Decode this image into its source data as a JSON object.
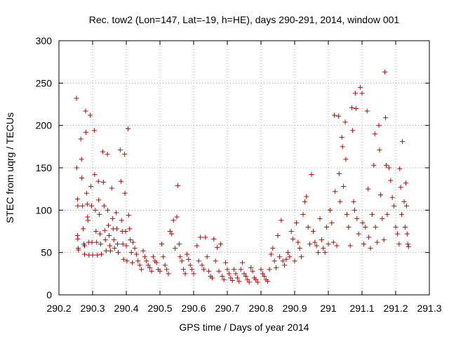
{
  "chart_data": {
    "type": "scatter",
    "title": "Rec. tow2 (Lon=147, Lat=-19, h=HE), days 290-291, 2014, window 001",
    "xlabel": "GPS time / Days of year 2014",
    "ylabel": "STEC from uqrg / TECUs",
    "xlim": [
      290.2,
      291.3
    ],
    "ylim": [
      0,
      300
    ],
    "xticks": [
      290.2,
      290.3,
      290.4,
      290.5,
      290.6,
      290.7,
      290.8,
      290.9,
      291,
      291.1,
      291.2,
      291.3
    ],
    "xtick_labels": [
      "290.2",
      "290.3",
      "290.4",
      "290.5",
      "290.6",
      "290.7",
      "290.8",
      "290.9",
      "291",
      "291.1",
      "291.2",
      "291.3"
    ],
    "yticks": [
      0,
      50,
      100,
      150,
      200,
      250,
      300
    ],
    "ytick_labels": [
      "0",
      "50",
      "100",
      "150",
      "200",
      "250",
      "300"
    ],
    "grid": true,
    "marker": "+",
    "color": "#cc0000",
    "points": [
      [
        290.252,
        232
      ],
      [
        290.253,
        150
      ],
      [
        290.255,
        113
      ],
      [
        290.256,
        105
      ],
      [
        290.255,
        70
      ],
      [
        290.256,
        66
      ],
      [
        290.257,
        55
      ],
      [
        290.258,
        53
      ],
      [
        290.265,
        184
      ],
      [
        290.267,
        160
      ],
      [
        290.268,
        138
      ],
      [
        290.27,
        105
      ],
      [
        290.272,
        78
      ],
      [
        290.274,
        60
      ],
      [
        290.276,
        58
      ],
      [
        290.276,
        48
      ],
      [
        290.279,
        217
      ],
      [
        290.28,
        192
      ],
      [
        290.282,
        120
      ],
      [
        290.284,
        107
      ],
      [
        290.285,
        92
      ],
      [
        290.286,
        88
      ],
      [
        290.288,
        62
      ],
      [
        290.289,
        47
      ],
      [
        290.293,
        212
      ],
      [
        290.295,
        128
      ],
      [
        290.297,
        105
      ],
      [
        290.298,
        62
      ],
      [
        290.3,
        47
      ],
      [
        290.305,
        194
      ],
      [
        290.306,
        142
      ],
      [
        290.308,
        100
      ],
      [
        290.31,
        75
      ],
      [
        290.312,
        62
      ],
      [
        290.314,
        47
      ],
      [
        290.317,
        134
      ],
      [
        290.318,
        112
      ],
      [
        290.32,
        95
      ],
      [
        290.322,
        72
      ],
      [
        290.324,
        60
      ],
      [
        290.326,
        48
      ],
      [
        290.33,
        169
      ],
      [
        290.332,
        133
      ],
      [
        290.334,
        105
      ],
      [
        290.336,
        76
      ],
      [
        290.338,
        65
      ],
      [
        290.34,
        52
      ],
      [
        290.344,
        166
      ],
      [
        290.345,
        100
      ],
      [
        290.347,
        82
      ],
      [
        290.349,
        70
      ],
      [
        290.351,
        58
      ],
      [
        290.353,
        52
      ],
      [
        290.357,
        126
      ],
      [
        290.359,
        90
      ],
      [
        290.361,
        78
      ],
      [
        290.363,
        65
      ],
      [
        290.365,
        55
      ],
      [
        290.37,
        97
      ],
      [
        290.372,
        78
      ],
      [
        290.374,
        60
      ],
      [
        290.376,
        50
      ],
      [
        290.382,
        171
      ],
      [
        290.384,
        134
      ],
      [
        290.386,
        88
      ],
      [
        290.388,
        75
      ],
      [
        290.39,
        60
      ],
      [
        290.392,
        42
      ],
      [
        290.395,
        166
      ],
      [
        290.396,
        120
      ],
      [
        290.398,
        75
      ],
      [
        290.4,
        58
      ],
      [
        290.402,
        40
      ],
      [
        290.405,
        196
      ],
      [
        290.407,
        94
      ],
      [
        290.41,
        78
      ],
      [
        290.412,
        65
      ],
      [
        290.415,
        50
      ],
      [
        290.418,
        38
      ],
      [
        290.42,
        62
      ],
      [
        290.425,
        55
      ],
      [
        290.43,
        48
      ],
      [
        290.435,
        40
      ],
      [
        290.44,
        35
      ],
      [
        290.445,
        30
      ],
      [
        290.45,
        52
      ],
      [
        290.455,
        45
      ],
      [
        290.46,
        40
      ],
      [
        290.465,
        35
      ],
      [
        290.47,
        32
      ],
      [
        290.475,
        28
      ],
      [
        290.48,
        45
      ],
      [
        290.485,
        40
      ],
      [
        290.49,
        38
      ],
      [
        290.495,
        30
      ],
      [
        290.5,
        28
      ],
      [
        290.505,
        60
      ],
      [
        290.51,
        45
      ],
      [
        290.515,
        35
      ],
      [
        290.52,
        30
      ],
      [
        290.525,
        25
      ],
      [
        290.53,
        75
      ],
      [
        290.535,
        72
      ],
      [
        290.54,
        88
      ],
      [
        290.545,
        55
      ],
      [
        290.55,
        92
      ],
      [
        290.553,
        129
      ],
      [
        290.557,
        60
      ],
      [
        290.56,
        45
      ],
      [
        290.565,
        40
      ],
      [
        290.57,
        30
      ],
      [
        290.575,
        25
      ],
      [
        290.58,
        48
      ],
      [
        290.585,
        42
      ],
      [
        290.59,
        35
      ],
      [
        290.595,
        30
      ],
      [
        290.6,
        25
      ],
      [
        290.61,
        58
      ],
      [
        290.615,
        40
      ],
      [
        290.62,
        68
      ],
      [
        290.625,
        35
      ],
      [
        290.63,
        30
      ],
      [
        290.635,
        68
      ],
      [
        290.64,
        45
      ],
      [
        290.645,
        28
      ],
      [
        290.65,
        22
      ],
      [
        290.655,
        20
      ],
      [
        290.66,
        66
      ],
      [
        290.665,
        40
      ],
      [
        290.67,
        56
      ],
      [
        290.675,
        28
      ],
      [
        290.68,
        60
      ],
      [
        290.685,
        22
      ],
      [
        290.69,
        18
      ],
      [
        290.695,
        38
      ],
      [
        290.7,
        30
      ],
      [
        290.705,
        25
      ],
      [
        290.71,
        20
      ],
      [
        290.715,
        17
      ],
      [
        290.72,
        30
      ],
      [
        290.725,
        25
      ],
      [
        290.73,
        20
      ],
      [
        290.735,
        16
      ],
      [
        290.74,
        30
      ],
      [
        290.745,
        38
      ],
      [
        290.75,
        25
      ],
      [
        290.755,
        22
      ],
      [
        290.76,
        18
      ],
      [
        290.765,
        15
      ],
      [
        290.77,
        32
      ],
      [
        290.775,
        28
      ],
      [
        290.78,
        20
      ],
      [
        290.785,
        18
      ],
      [
        290.79,
        15
      ],
      [
        290.8,
        30
      ],
      [
        290.805,
        25
      ],
      [
        290.81,
        22
      ],
      [
        290.815,
        18
      ],
      [
        290.82,
        16
      ],
      [
        290.825,
        30
      ],
      [
        290.83,
        48
      ],
      [
        290.835,
        55
      ],
      [
        290.84,
        40
      ],
      [
        290.845,
        32
      ],
      [
        290.85,
        70
      ],
      [
        290.855,
        45
      ],
      [
        290.86,
        88
      ],
      [
        290.865,
        40
      ],
      [
        290.87,
        35
      ],
      [
        290.875,
        42
      ],
      [
        290.88,
        50
      ],
      [
        290.885,
        45
      ],
      [
        290.89,
        75
      ],
      [
        290.895,
        66
      ],
      [
        290.9,
        40
      ],
      [
        290.905,
        85
      ],
      [
        290.91,
        62
      ],
      [
        290.915,
        55
      ],
      [
        290.92,
        45
      ],
      [
        290.925,
        95
      ],
      [
        290.93,
        110
      ],
      [
        290.935,
        116
      ],
      [
        290.94,
        80
      ],
      [
        290.945,
        60
      ],
      [
        290.95,
        142
      ],
      [
        290.955,
        75
      ],
      [
        290.96,
        62
      ],
      [
        290.965,
        58
      ],
      [
        290.97,
        50
      ],
      [
        290.975,
        90
      ],
      [
        290.98,
        65
      ],
      [
        290.985,
        55
      ],
      [
        290.99,
        50
      ],
      [
        290.995,
        80
      ],
      [
        291.0,
        60
      ],
      [
        291.005,
        100
      ],
      [
        291.01,
        85
      ],
      [
        291.015,
        62
      ],
      [
        291.018,
        212
      ],
      [
        291.02,
        122
      ],
      [
        291.025,
        58
      ],
      [
        291.03,
        211
      ],
      [
        291.032,
        143
      ],
      [
        291.035,
        110
      ],
      [
        291.04,
        186
      ],
      [
        291.042,
        175
      ],
      [
        291.045,
        128
      ],
      [
        291.05,
        204
      ],
      [
        291.052,
        160
      ],
      [
        291.055,
        95
      ],
      [
        291.06,
        80
      ],
      [
        291.065,
        58
      ],
      [
        291.07,
        221
      ],
      [
        291.072,
        194
      ],
      [
        291.075,
        110
      ],
      [
        291.078,
        100
      ],
      [
        291.08,
        238
      ],
      [
        291.082,
        220
      ],
      [
        291.085,
        90
      ],
      [
        291.09,
        72
      ],
      [
        291.095,
        245
      ],
      [
        291.1,
        238
      ],
      [
        291.102,
        85
      ],
      [
        291.105,
        60
      ],
      [
        291.11,
        80
      ],
      [
        291.115,
        217
      ],
      [
        291.118,
        125
      ],
      [
        291.12,
        68
      ],
      [
        291.125,
        55
      ],
      [
        291.13,
        95
      ],
      [
        291.135,
        153
      ],
      [
        291.138,
        190
      ],
      [
        291.14,
        80
      ],
      [
        291.145,
        62
      ],
      [
        291.15,
        200
      ],
      [
        291.152,
        171
      ],
      [
        291.155,
        118
      ],
      [
        291.16,
        90
      ],
      [
        291.165,
        65
      ],
      [
        291.168,
        263
      ],
      [
        291.17,
        209
      ],
      [
        291.172,
        153
      ],
      [
        291.175,
        95
      ],
      [
        291.18,
        150
      ],
      [
        291.185,
        135
      ],
      [
        291.19,
        115
      ],
      [
        291.195,
        105
      ],
      [
        291.2,
        80
      ],
      [
        291.205,
        72
      ],
      [
        291.21,
        60
      ],
      [
        291.212,
        149
      ],
      [
        291.215,
        127
      ],
      [
        291.218,
        95
      ],
      [
        291.22,
        181
      ],
      [
        291.225,
        110
      ],
      [
        291.228,
        80
      ],
      [
        291.23,
        132
      ],
      [
        291.232,
        105
      ],
      [
        291.234,
        72
      ],
      [
        291.236,
        60
      ],
      [
        291.238,
        57
      ]
    ]
  }
}
